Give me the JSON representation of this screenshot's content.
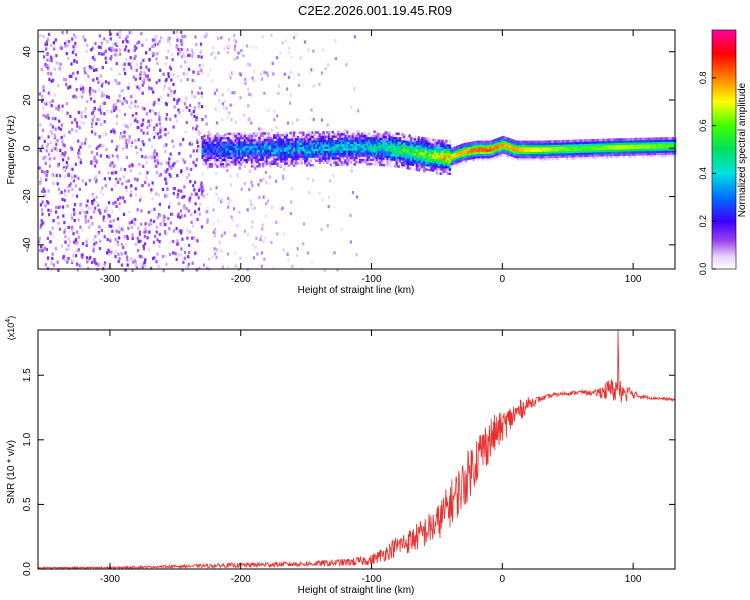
{
  "figure": {
    "title": "C2E2.2026.001.19.45.R09"
  },
  "colors": {
    "snr_line": "#e8302e",
    "axis": "#000000",
    "background": "#ffffff"
  },
  "chart_data": [
    {
      "type": "heatmap",
      "title": "C2E2.2026.001.19.45.R09",
      "xlabel": "Height of straight line (km)",
      "ylabel": "Frequency (Hz)",
      "xlim": [
        -355,
        132
      ],
      "ylim": [
        -50,
        49
      ],
      "x_ticks": [
        -300,
        -200,
        -100,
        0,
        100
      ],
      "x_tick_labels": [
        "-300",
        "-200",
        "-100",
        "0",
        "100"
      ],
      "y_ticks": [
        -40,
        -20,
        0,
        20,
        40
      ],
      "y_tick_labels": [
        "-40",
        "-20",
        "0",
        "20",
        "40"
      ],
      "colorbar": {
        "label": "Normalized spectral amplitude",
        "range": [
          0,
          1
        ],
        "ticks": [
          0.0,
          0.2,
          0.4,
          0.6,
          0.8
        ],
        "tick_labels": [
          "0.0",
          "0.2",
          "0.4",
          "0.6",
          "0.8"
        ],
        "colormap": "rainbow (white-violet-blue-cyan-green-yellow-red-magenta)"
      },
      "ridge": {
        "description": "dominant frequency ridge vs height",
        "x": [
          -230,
          -200,
          -150,
          -100,
          -80,
          -60,
          -48,
          -40,
          -30,
          -20,
          -10,
          0,
          10,
          30,
          60,
          90,
          132
        ],
        "frequency": [
          0,
          0,
          0.5,
          1,
          0,
          -2,
          -3,
          -3,
          -1,
          0,
          0,
          2,
          0,
          0,
          0.5,
          1,
          1.5
        ],
        "amplitude": [
          0.25,
          0.3,
          0.35,
          0.4,
          0.5,
          0.6,
          0.7,
          0.75,
          0.8,
          0.85,
          0.85,
          0.8,
          0.8,
          0.7,
          0.6,
          0.7,
          0.6
        ]
      },
      "noise_region": {
        "x_range": [
          -355,
          -110
        ],
        "description": "scattered low-amplitude speckle across full frequency range, densest below -230 km"
      }
    },
    {
      "type": "line",
      "xlabel": "Height of straight line (km)",
      "ylabel": "SNR (10 * v/v)",
      "y_scale_label": "(x10",
      "y_scale_exponent": "4",
      "y_scale_suffix": ")",
      "xlim": [
        -355,
        132
      ],
      "ylim": [
        0,
        1.85
      ],
      "x_ticks": [
        -300,
        -200,
        -100,
        0,
        100
      ],
      "x_tick_labels": [
        "-300",
        "-200",
        "-100",
        "0",
        "100"
      ],
      "y_ticks": [
        0.0,
        0.5,
        1.0,
        1.5
      ],
      "y_tick_labels": [
        "0.0",
        "0.5",
        "1.0",
        "1.5"
      ],
      "series": [
        {
          "name": "SNR",
          "x": [
            -355,
            -300,
            -250,
            -200,
            -150,
            -120,
            -100,
            -90,
            -80,
            -70,
            -60,
            -50,
            -40,
            -30,
            -20,
            -10,
            0,
            10,
            20,
            30,
            40,
            50,
            60,
            70,
            80,
            90,
            100,
            110,
            120,
            132
          ],
          "values": [
            0.01,
            0.01,
            0.02,
            0.03,
            0.04,
            0.05,
            0.07,
            0.12,
            0.18,
            0.22,
            0.28,
            0.35,
            0.5,
            0.65,
            0.85,
            1.0,
            1.1,
            1.2,
            1.28,
            1.32,
            1.35,
            1.36,
            1.37,
            1.36,
            1.38,
            1.4,
            1.35,
            1.33,
            1.32,
            1.31
          ],
          "noise": [
            0.005,
            0.008,
            0.01,
            0.02,
            0.02,
            0.03,
            0.04,
            0.06,
            0.08,
            0.1,
            0.12,
            0.14,
            0.18,
            0.2,
            0.2,
            0.18,
            0.12,
            0.1,
            0.05,
            0.02,
            0.015,
            0.015,
            0.015,
            0.02,
            0.08,
            0.12,
            0.03,
            0.015,
            0.012,
            0.01
          ]
        }
      ]
    }
  ]
}
